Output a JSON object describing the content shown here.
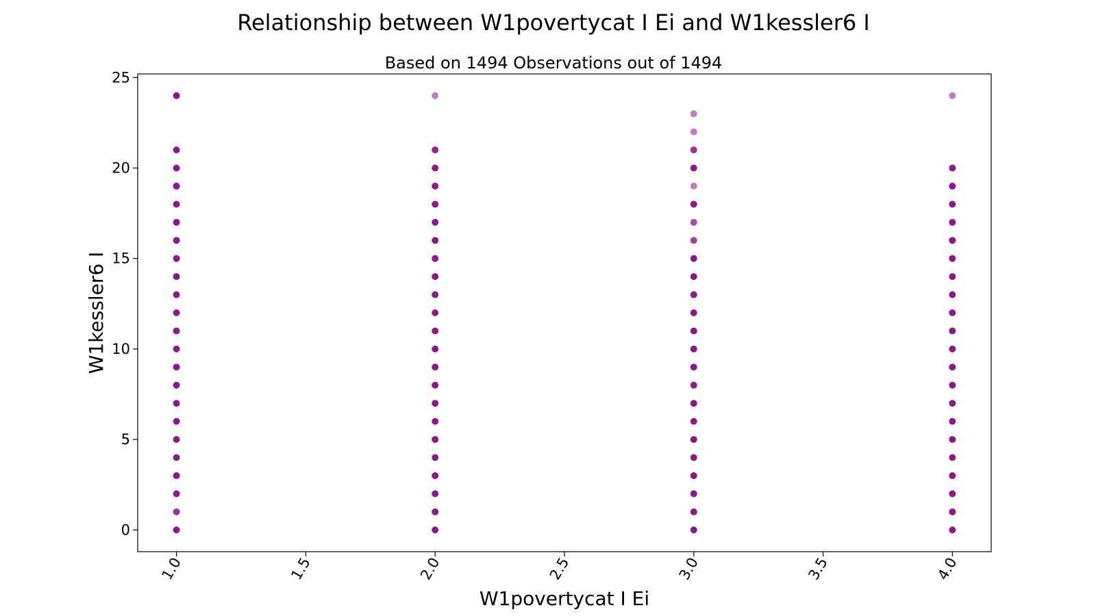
{
  "chart_data": {
    "type": "scatter",
    "title": "Relationship between W1povertycat I Ei and W1kessler6 I",
    "subtitle": "Based on 1494 Observations out of 1494",
    "xlabel": "W1povertycat I Ei",
    "ylabel": "W1kessler6 I",
    "xlim": [
      0.85,
      4.15
    ],
    "ylim": [
      -1.2,
      25.2
    ],
    "xticks": [
      "1.0",
      "1.5",
      "2.0",
      "2.5",
      "3.0",
      "3.5",
      "4.0"
    ],
    "yticks": [
      "0",
      "5",
      "10",
      "15",
      "20",
      "25"
    ],
    "grid": false,
    "color": "#800080",
    "series": [
      {
        "x": 1,
        "y": [
          0,
          1,
          2,
          3,
          4,
          5,
          6,
          7,
          8,
          9,
          10,
          11,
          12,
          13,
          14,
          15,
          16,
          17,
          18,
          19,
          20,
          21,
          24
        ],
        "opacity": [
          0.9,
          0.8,
          0.9,
          0.9,
          0.9,
          0.9,
          0.9,
          0.9,
          0.9,
          0.9,
          0.9,
          0.9,
          0.9,
          0.9,
          0.9,
          0.9,
          0.9,
          0.9,
          0.9,
          0.9,
          0.9,
          0.9,
          0.9
        ]
      },
      {
        "x": 2,
        "y": [
          0,
          1,
          2,
          3,
          4,
          5,
          6,
          7,
          8,
          9,
          10,
          11,
          12,
          13,
          14,
          15,
          16,
          17,
          18,
          19,
          20,
          21,
          24
        ],
        "opacity": [
          0.9,
          0.9,
          0.9,
          0.9,
          0.9,
          0.9,
          0.9,
          0.9,
          0.9,
          0.9,
          0.9,
          0.9,
          0.9,
          0.9,
          0.9,
          0.9,
          0.9,
          0.9,
          0.9,
          0.9,
          0.9,
          0.85,
          0.5
        ]
      },
      {
        "x": 3,
        "y": [
          0,
          1,
          2,
          3,
          4,
          5,
          6,
          7,
          8,
          9,
          10,
          11,
          12,
          13,
          14,
          15,
          16,
          17,
          18,
          19,
          20,
          21,
          22,
          23
        ],
        "opacity": [
          0.9,
          0.9,
          0.9,
          0.9,
          0.9,
          0.9,
          0.9,
          0.9,
          0.9,
          0.9,
          0.9,
          0.9,
          0.9,
          0.9,
          0.9,
          0.9,
          0.75,
          0.7,
          0.9,
          0.5,
          0.9,
          0.8,
          0.5,
          0.5
        ]
      },
      {
        "x": 4,
        "y": [
          0,
          1,
          2,
          3,
          4,
          5,
          6,
          7,
          8,
          9,
          10,
          11,
          12,
          13,
          14,
          15,
          16,
          17,
          18,
          19,
          20,
          24
        ],
        "opacity": [
          0.9,
          0.9,
          0.9,
          0.9,
          0.9,
          0.9,
          0.9,
          0.9,
          0.9,
          0.9,
          0.9,
          0.9,
          0.9,
          0.9,
          0.9,
          0.9,
          0.9,
          0.9,
          0.9,
          0.9,
          0.9,
          0.5
        ]
      }
    ]
  }
}
